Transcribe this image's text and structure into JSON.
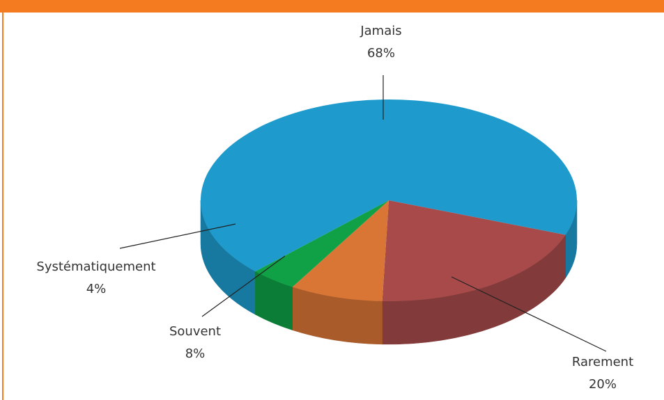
{
  "chart_data": {
    "type": "pie3d",
    "categories": [
      "Jamais",
      "Rarement",
      "Souvent",
      "Systématiquement"
    ],
    "values": [
      68,
      20,
      8,
      4
    ],
    "value_labels": [
      "68%",
      "20%",
      "8%",
      "4%"
    ],
    "colors": [
      "#1e9bcc",
      "#a84a4a",
      "#d97535",
      "#10a046"
    ]
  }
}
